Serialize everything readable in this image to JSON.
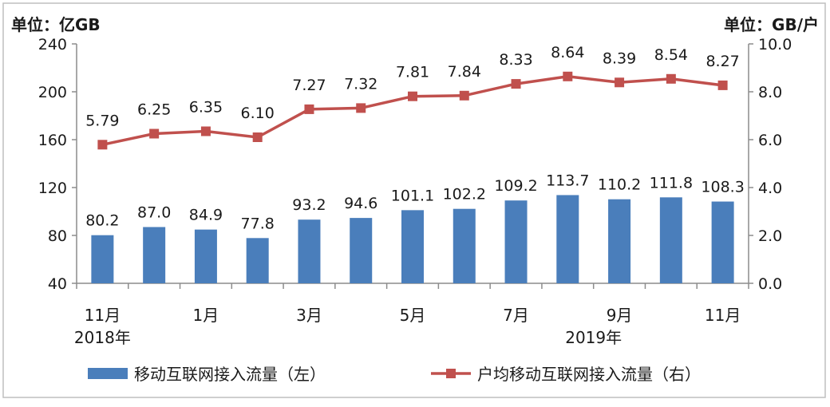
{
  "chart_data": {
    "type": "bar+line",
    "left_unit": "单位：亿GB",
    "right_unit": "单位：GB/户",
    "left_ticks": [
      "240",
      "200",
      "160",
      "120",
      "80",
      "40"
    ],
    "right_ticks": [
      "10.0",
      "8.0",
      "6.0",
      "4.0",
      "2.0",
      "0.0"
    ],
    "ylim_left": [
      40,
      240
    ],
    "ylim_right": [
      0,
      10
    ],
    "x_tick_labels": [
      "11月",
      "",
      "1月",
      "",
      "3月",
      "",
      "5月",
      "",
      "7月",
      "",
      "9月",
      "",
      "11月"
    ],
    "year_labels": [
      "2018年",
      "2019年"
    ],
    "series": [
      {
        "name": "移动互联网接入流量（左）",
        "type": "bar",
        "axis": "left",
        "color": "#4a7ebb",
        "values": [
          80.2,
          87.0,
          84.9,
          77.8,
          93.2,
          94.6,
          101.1,
          102.2,
          109.2,
          113.7,
          110.2,
          111.8,
          108.3
        ],
        "labels": [
          "80.2",
          "87.0",
          "84.9",
          "77.8",
          "93.2",
          "94.6",
          "101.1",
          "102.2",
          "109.2",
          "113.7",
          "110.2",
          "111.8",
          "108.3"
        ]
      },
      {
        "name": "户均移动互联网接入流量（右）",
        "type": "line",
        "axis": "right",
        "color": "#c0504d",
        "values": [
          5.79,
          6.25,
          6.35,
          6.1,
          7.27,
          7.32,
          7.81,
          7.84,
          8.33,
          8.64,
          8.39,
          8.54,
          8.27
        ],
        "labels": [
          "5.79",
          "6.25",
          "6.35",
          "6.10",
          "7.27",
          "7.32",
          "7.81",
          "7.84",
          "8.33",
          "8.64",
          "8.39",
          "8.54",
          "8.27"
        ]
      }
    ]
  }
}
